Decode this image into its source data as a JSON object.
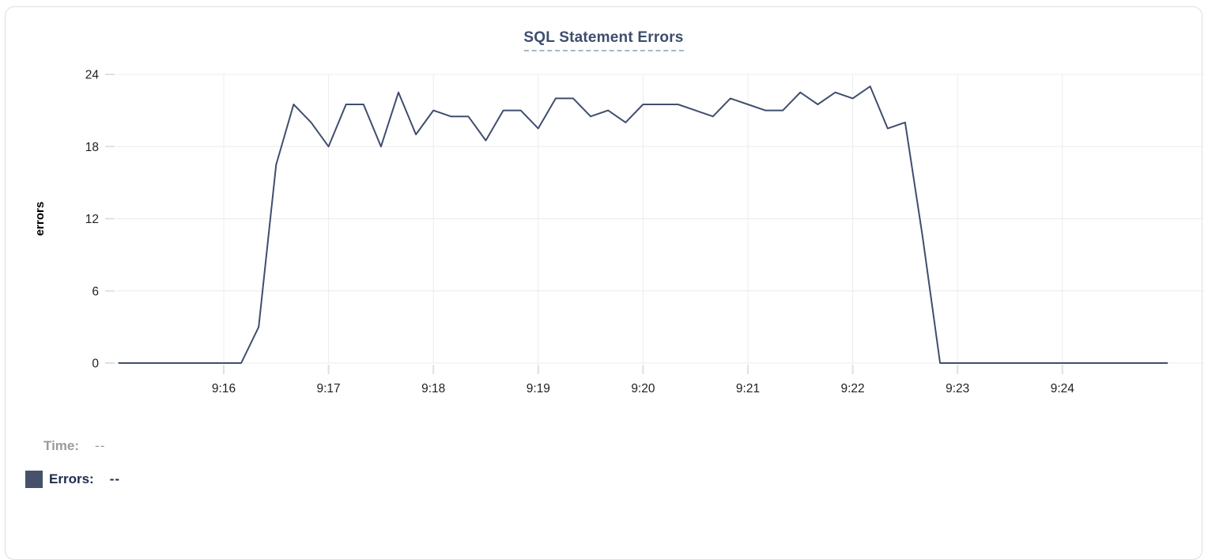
{
  "panel": {
    "title": "SQL Statement Errors"
  },
  "chart_data": {
    "type": "line",
    "title": "SQL Statement Errors",
    "xlabel": "",
    "ylabel": "errors",
    "x_tick_labels": [
      "9:16",
      "9:17",
      "9:18",
      "9:19",
      "9:20",
      "9:21",
      "9:22",
      "9:23",
      "9:24"
    ],
    "y_tick_labels": [
      0,
      6,
      12,
      18,
      24
    ],
    "ylim": [
      0,
      24
    ],
    "x_range": [
      "9:15:00",
      "9:25:00"
    ],
    "sample_interval_seconds": 10,
    "grid": true,
    "legend_position": "below-left",
    "series": [
      {
        "name": "Errors",
        "color": "#3f4e6e",
        "points": [
          [
            "9:15:00",
            0
          ],
          [
            "9:15:10",
            0
          ],
          [
            "9:15:20",
            0
          ],
          [
            "9:15:30",
            0
          ],
          [
            "9:15:40",
            0
          ],
          [
            "9:15:50",
            0
          ],
          [
            "9:16:00",
            0
          ],
          [
            "9:16:10",
            0
          ],
          [
            "9:16:20",
            3
          ],
          [
            "9:16:30",
            16.5
          ],
          [
            "9:16:40",
            21.5
          ],
          [
            "9:16:50",
            20
          ],
          [
            "9:17:00",
            18
          ],
          [
            "9:17:10",
            21.5
          ],
          [
            "9:17:20",
            21.5
          ],
          [
            "9:17:30",
            18
          ],
          [
            "9:17:40",
            22.5
          ],
          [
            "9:17:50",
            19
          ],
          [
            "9:18:00",
            21
          ],
          [
            "9:18:10",
            20.5
          ],
          [
            "9:18:20",
            20.5
          ],
          [
            "9:18:30",
            18.5
          ],
          [
            "9:18:40",
            21
          ],
          [
            "9:18:50",
            21
          ],
          [
            "9:19:00",
            19.5
          ],
          [
            "9:19:10",
            22
          ],
          [
            "9:19:20",
            22
          ],
          [
            "9:19:30",
            20.5
          ],
          [
            "9:19:40",
            21
          ],
          [
            "9:19:50",
            20
          ],
          [
            "9:20:00",
            21.5
          ],
          [
            "9:20:10",
            21.5
          ],
          [
            "9:20:20",
            21.5
          ],
          [
            "9:20:30",
            21
          ],
          [
            "9:20:40",
            20.5
          ],
          [
            "9:20:50",
            22
          ],
          [
            "9:21:00",
            21.5
          ],
          [
            "9:21:10",
            21
          ],
          [
            "9:21:20",
            21
          ],
          [
            "9:21:30",
            22.5
          ],
          [
            "9:21:40",
            21.5
          ],
          [
            "9:21:50",
            22.5
          ],
          [
            "9:22:00",
            22
          ],
          [
            "9:22:10",
            23
          ],
          [
            "9:22:20",
            19.5
          ],
          [
            "9:22:30",
            20
          ],
          [
            "9:22:40",
            10.5
          ],
          [
            "9:22:50",
            0
          ],
          [
            "9:23:00",
            0
          ],
          [
            "9:23:10",
            0
          ],
          [
            "9:23:20",
            0
          ],
          [
            "9:23:30",
            0
          ],
          [
            "9:23:40",
            0
          ],
          [
            "9:23:50",
            0
          ],
          [
            "9:24:00",
            0
          ],
          [
            "9:24:10",
            0
          ],
          [
            "9:24:20",
            0
          ],
          [
            "9:24:30",
            0
          ],
          [
            "9:24:40",
            0
          ],
          [
            "9:24:50",
            0
          ],
          [
            "9:25:00",
            0
          ]
        ]
      }
    ]
  },
  "tooltip": {
    "time_label": "Time:",
    "time_value": "--",
    "errors_label": "Errors:",
    "errors_value": "--"
  },
  "colors": {
    "line": "#3f4e6e",
    "title_text": "#3e4d6e",
    "title_underline": "#a9b5ca",
    "legend_swatch": "#46526b",
    "errors_text": "#1e2a4d",
    "time_text": "#9b9b9b",
    "gridline": "#ececec",
    "tick_mark": "#e0e0e0",
    "axis_text": "#1f1f1f",
    "card_border": "#dcdee2"
  }
}
